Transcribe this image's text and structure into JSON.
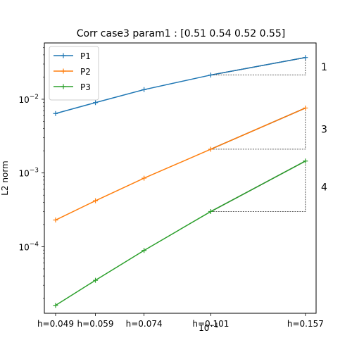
{
  "chart_data": {
    "type": "line",
    "title": "Corr case3 param1 : [0.51 0.54 0.52 0.55]",
    "xlabel": "",
    "ylabel": "L2 norm",
    "x_scale": "log",
    "y_scale": "log",
    "x": [
      0.049,
      0.059,
      0.074,
      0.101,
      0.157
    ],
    "x_tick_labels": [
      "h=0.049",
      "h=0.059",
      "h=0.074",
      "h=0.101",
      "h=0.157"
    ],
    "x_minor_label": "10^-1",
    "y_ticks": [
      {
        "value": 0.01,
        "mantissa": "10",
        "exponent": "−2"
      },
      {
        "value": 0.001,
        "mantissa": "10",
        "exponent": "−3"
      },
      {
        "value": 0.0001,
        "mantissa": "10",
        "exponent": "−4"
      }
    ],
    "xlim": [
      0.0465,
      0.165
    ],
    "ylim": [
      1.25e-05,
      0.058
    ],
    "legend_position": "top-left",
    "grid": false,
    "series": [
      {
        "name": "P1",
        "color": "#1f77b4",
        "values": [
          0.0064,
          0.009,
          0.0135,
          0.0213,
          0.0368
        ]
      },
      {
        "name": "P2",
        "color": "#ff7f0e",
        "values": [
          0.00023,
          0.00042,
          0.00085,
          0.0021,
          0.0076
        ]
      },
      {
        "name": "P3",
        "color": "#2ca02c",
        "values": [
          1.6e-05,
          3.5e-05,
          8.9e-05,
          0.0003,
          0.00145
        ]
      }
    ],
    "slope_triangles": [
      {
        "series": "P1",
        "label": "1"
      },
      {
        "series": "P2",
        "label": "3"
      },
      {
        "series": "P3",
        "label": "4"
      }
    ]
  }
}
